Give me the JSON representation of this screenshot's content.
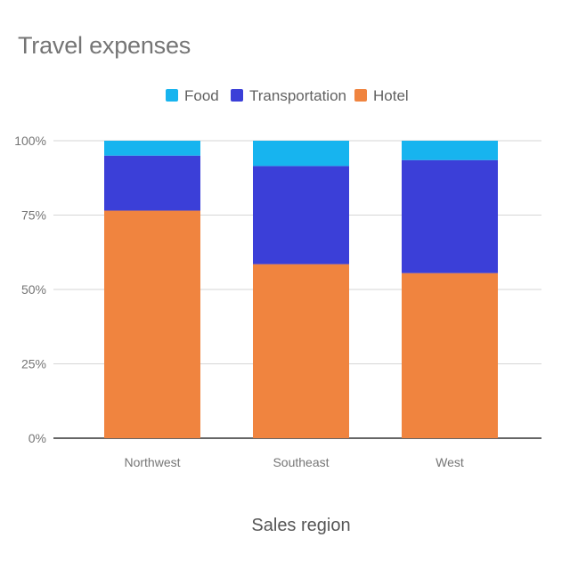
{
  "chart_data": {
    "type": "bar",
    "stacked": true,
    "percent_stacked": true,
    "title": "Travel expenses",
    "xlabel": "Sales region",
    "ylabel": "",
    "categories": [
      "Northwest",
      "Southeast",
      "West"
    ],
    "series": [
      {
        "name": "Hotel",
        "color": "#f0843f",
        "values": [
          76.5,
          58.5,
          55.5
        ]
      },
      {
        "name": "Transportation",
        "color": "#3b3fd8",
        "values": [
          18.5,
          33.0,
          38.0
        ]
      },
      {
        "name": "Food",
        "color": "#17b4ef",
        "values": [
          5.0,
          8.5,
          6.5
        ]
      }
    ],
    "legend_order": [
      "Food",
      "Transportation",
      "Hotel"
    ],
    "legend_position": "top",
    "ylim": [
      0,
      100
    ],
    "yticks": [
      0,
      25,
      50,
      75,
      100
    ],
    "ytick_labels": [
      "0%",
      "25%",
      "50%",
      "75%",
      "100%"
    ],
    "grid": true
  }
}
